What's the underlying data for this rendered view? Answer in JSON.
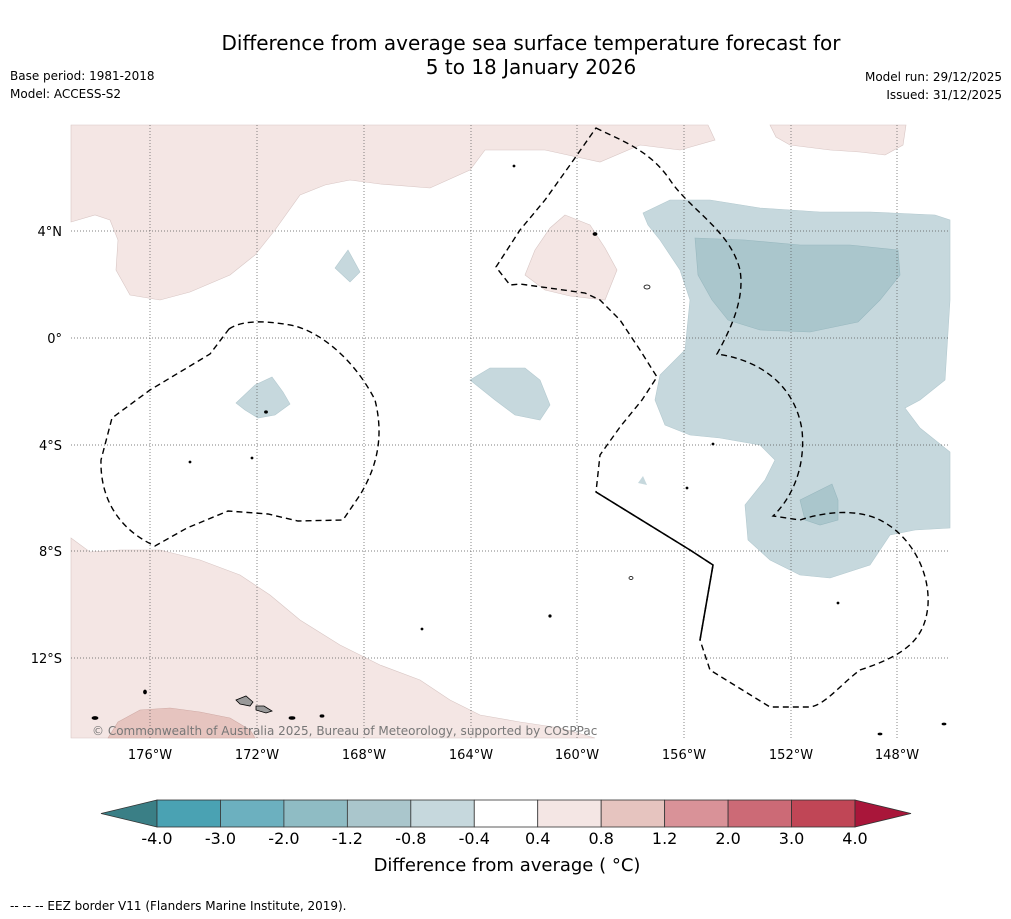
{
  "header": {
    "title_line1": "Difference from average sea surface temperature forecast for",
    "title_line2": "5 to 18 January 2026",
    "base_period": "Base period: 1981-2018",
    "model": "Model: ACCESS-S2",
    "model_run": "Model run: 29/12/2025",
    "issued": "Issued: 31/12/2025"
  },
  "map": {
    "lon_labels": [
      "176°W",
      "172°W",
      "168°W",
      "164°W",
      "160°W",
      "156°W",
      "152°W",
      "148°W"
    ],
    "lat_labels": [
      "4°N",
      "0°",
      "4°S",
      "8°S",
      "12°S"
    ],
    "copyright": "© Commonwealth of Australia 2025, Bureau of Meteorology, supported by COSPPac"
  },
  "colorbar": {
    "title": "Difference from average ( °C)",
    "tick_labels": [
      "-4.0",
      "-3.0",
      "-2.0",
      "-1.2",
      "-0.8",
      "-0.4",
      "0.4",
      "0.8",
      "1.2",
      "2.0",
      "3.0",
      "4.0"
    ],
    "colors": [
      "#3a7f86",
      "#4aa2b3",
      "#6cb0bf",
      "#8fbcc4",
      "#aac6cc",
      "#c6d8dd",
      "#ffffff",
      "#f4e6e4",
      "#e6c4bf",
      "#d99298",
      "#cc6a76",
      "#c04656",
      "#a9163a"
    ]
  },
  "footnote": "--  --  -- EEZ border V11 (Flanders Marine Institute, 2019)."
}
